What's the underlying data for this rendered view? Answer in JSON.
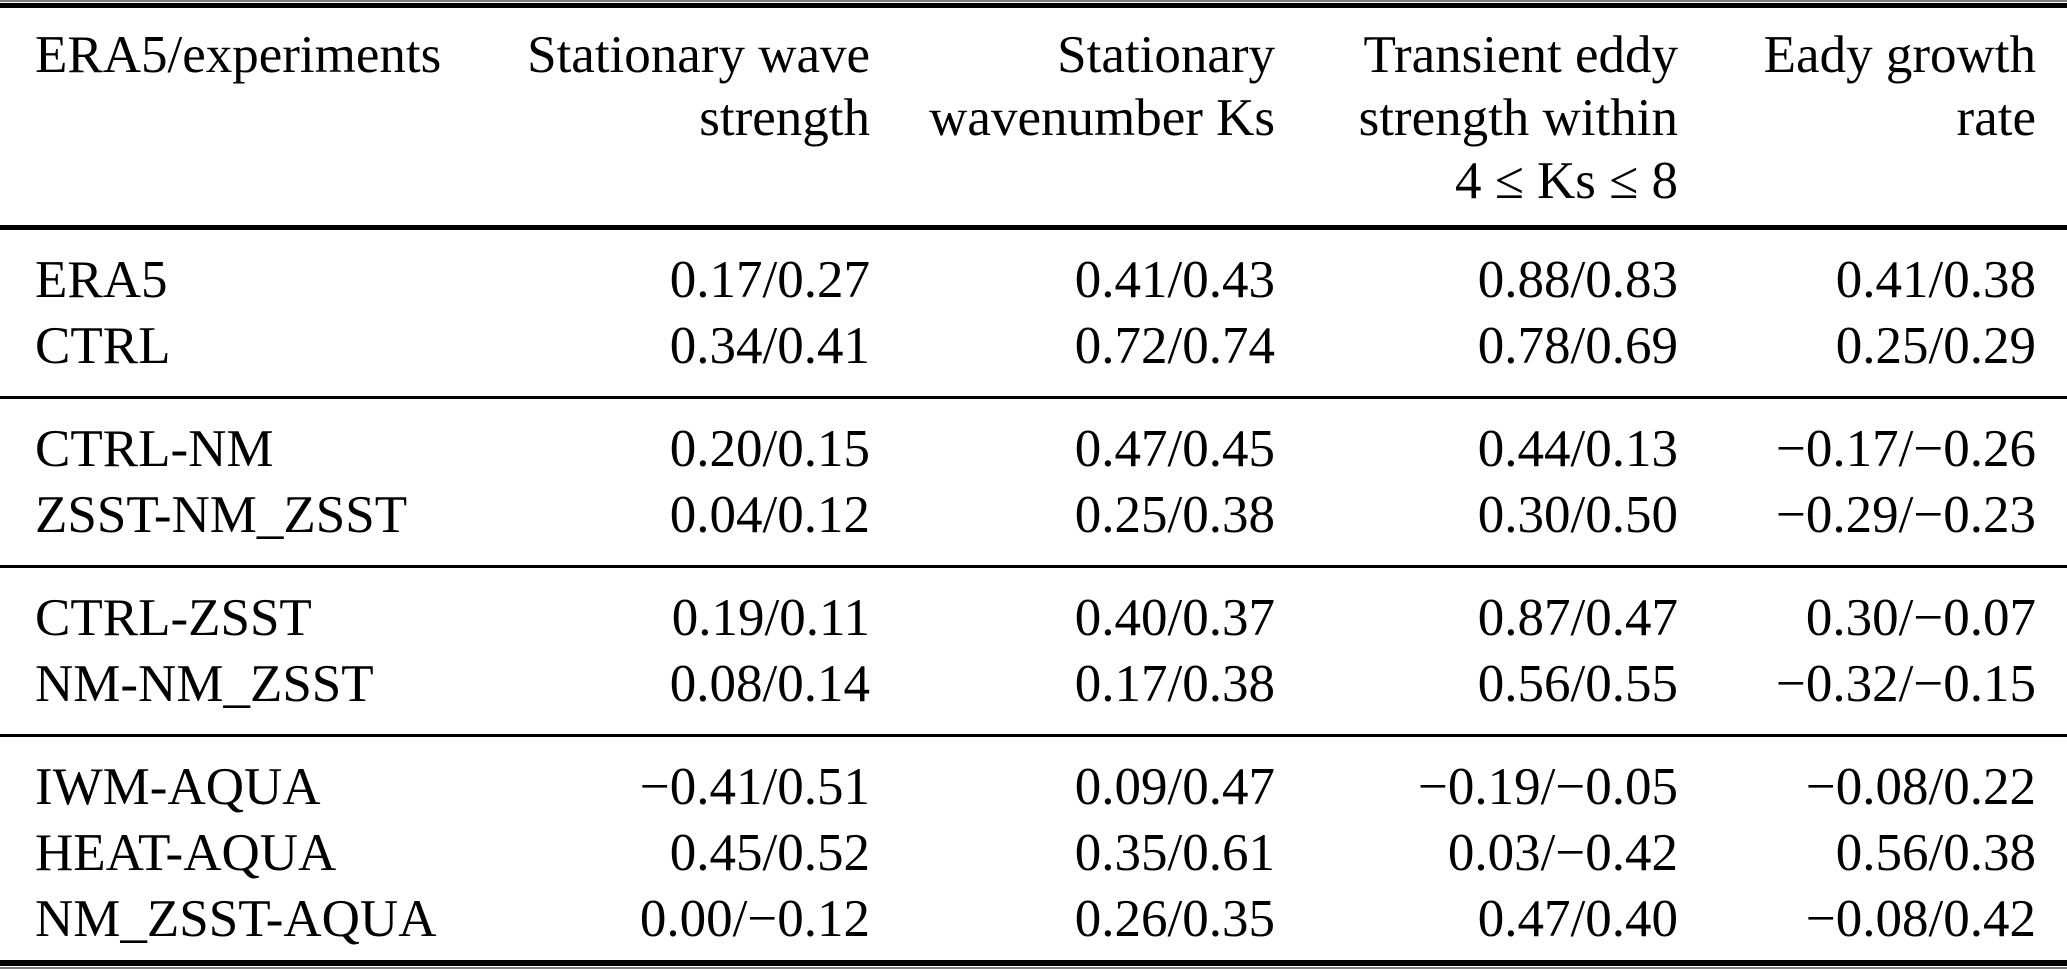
{
  "page": {
    "background": "#ffffff",
    "text_color": "#000000",
    "rule_color": "#000000"
  },
  "table": {
    "columns": [
      {
        "id": "experiments",
        "align": "left",
        "lines": [
          "ERA5/experiments"
        ]
      },
      {
        "id": "stationary-wave-strength",
        "align": "right",
        "lines": [
          "Stationary wave",
          "strength"
        ]
      },
      {
        "id": "stationary-wavenumber-ks",
        "align": "right",
        "lines": [
          "Stationary",
          "wavenumber Ks"
        ]
      },
      {
        "id": "transient-eddy-strength",
        "align": "right",
        "lines": [
          "Transient eddy",
          "strength within",
          "4 ≤ Ks ≤ 8"
        ]
      },
      {
        "id": "eady-growth-rate",
        "align": "right",
        "lines": [
          "Eady growth",
          "rate"
        ]
      }
    ],
    "groups": [
      {
        "rows": [
          {
            "label": "ERA5",
            "values": [
              "0.17/0.27",
              "0.41/0.43",
              "0.88/0.83",
              "0.41/0.38"
            ]
          },
          {
            "label": "CTRL",
            "values": [
              "0.34/0.41",
              "0.72/0.74",
              "0.78/0.69",
              "0.25/0.29"
            ]
          }
        ]
      },
      {
        "rows": [
          {
            "label": "CTRL-NM",
            "values": [
              "0.20/0.15",
              "0.47/0.45",
              "0.44/0.13",
              "−0.17/−0.26"
            ]
          },
          {
            "label": "ZSST-NM_ZSST",
            "values": [
              "0.04/0.12",
              "0.25/0.38",
              "0.30/0.50",
              "−0.29/−0.23"
            ]
          }
        ]
      },
      {
        "rows": [
          {
            "label": "CTRL-ZSST",
            "values": [
              "0.19/0.11",
              "0.40/0.37",
              "0.87/0.47",
              "0.30/−0.07"
            ]
          },
          {
            "label": "NM-NM_ZSST",
            "values": [
              "0.08/0.14",
              "0.17/0.38",
              "0.56/0.55",
              "−0.32/−0.15"
            ]
          }
        ]
      },
      {
        "rows": [
          {
            "label": "IWM-AQUA",
            "values": [
              "−0.41/0.51",
              "0.09/0.47",
              "−0.19/−0.05",
              "−0.08/0.22"
            ]
          },
          {
            "label": "HEAT-AQUA",
            "values": [
              "0.45/0.52",
              "0.35/0.61",
              "0.03/−0.42",
              "0.56/0.38"
            ]
          },
          {
            "label": "NM_ZSST-AQUA",
            "values": [
              "0.00/−0.12",
              "0.26/0.35",
              "0.47/0.40",
              "−0.08/0.42"
            ]
          }
        ]
      }
    ]
  }
}
